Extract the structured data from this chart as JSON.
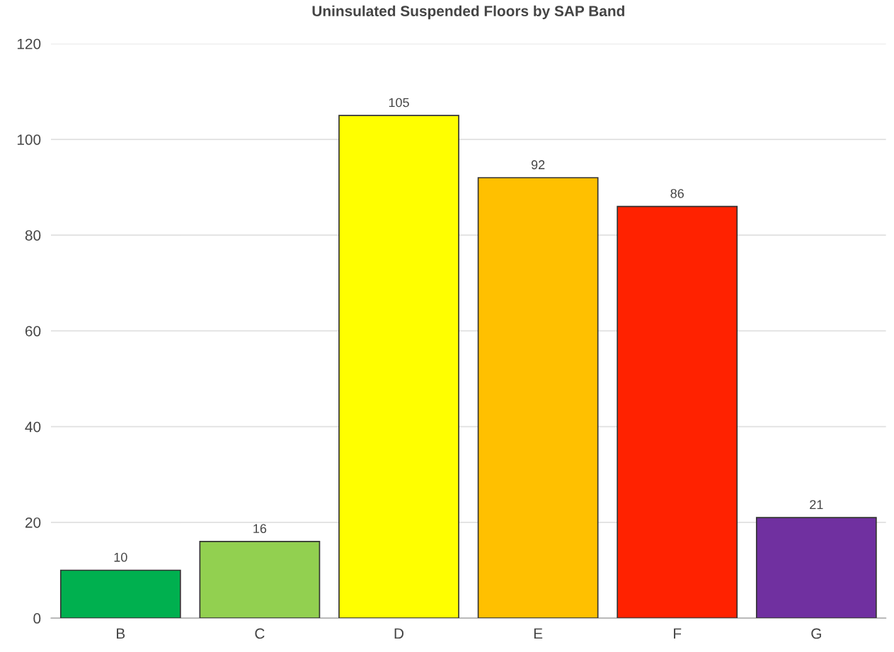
{
  "chart_data": {
    "type": "bar",
    "title": "Uninsulated Suspended Floors by SAP Band",
    "categories": [
      "B",
      "C",
      "D",
      "E",
      "F",
      "G"
    ],
    "values": [
      10,
      16,
      105,
      92,
      86,
      21
    ],
    "colors": [
      "#00b04f",
      "#92d050",
      "#ffff00",
      "#ffc000",
      "#ff2200",
      "#7030a0"
    ],
    "ylim": [
      0,
      120
    ],
    "yticks": [
      0,
      20,
      40,
      60,
      80,
      100,
      120
    ],
    "grid": "y",
    "data_labels": true
  }
}
